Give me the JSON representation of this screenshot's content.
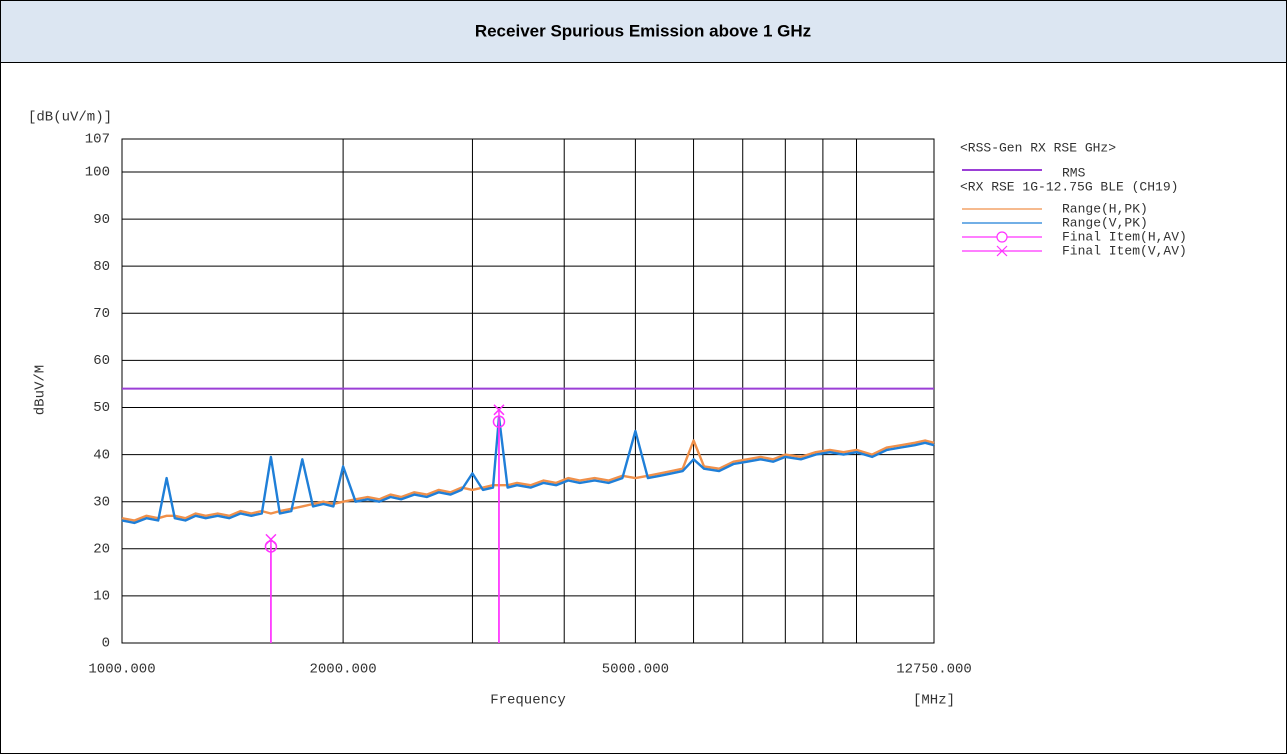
{
  "header": {
    "title": "Receiver Spurious Emission above 1 GHz"
  },
  "chart_data": {
    "type": "line",
    "y_unit": "[dB(uV/m)]",
    "ylabel": "dBuV/M",
    "xlabel": "Frequency",
    "x_unit": "[MHz]",
    "xscale": "log",
    "grid": true,
    "xlim": [
      1000,
      12750
    ],
    "ylim": [
      0,
      107
    ],
    "yticks": [
      0,
      10,
      20,
      30,
      40,
      50,
      60,
      70,
      80,
      90,
      100,
      107
    ],
    "xticks": [
      {
        "value": 1000,
        "label": "1000.000"
      },
      {
        "value": 2000,
        "label": "2000.000"
      },
      {
        "value": 5000,
        "label": "5000.000"
      },
      {
        "value": 12750,
        "label": "12750.000"
      }
    ],
    "xgrid": [
      3000,
      4000,
      6000,
      7000,
      8000,
      9000,
      10000
    ],
    "legend_groups": [
      "<RSS-Gen RX RSE GHz>",
      "<RX RSE 1G-12.75G BLE (CH19)"
    ],
    "limit": {
      "name": "RMS",
      "color": "#9b3fd6",
      "value": 54
    },
    "x": [
      1000,
      1040,
      1080,
      1120,
      1150,
      1180,
      1220,
      1260,
      1300,
      1350,
      1400,
      1450,
      1500,
      1550,
      1595,
      1640,
      1700,
      1760,
      1820,
      1880,
      1940,
      2000,
      2080,
      2160,
      2240,
      2320,
      2400,
      2500,
      2600,
      2700,
      2800,
      2900,
      3000,
      3100,
      3200,
      3260,
      3350,
      3450,
      3600,
      3750,
      3900,
      4050,
      4200,
      4400,
      4600,
      4800,
      5000,
      5200,
      5400,
      5600,
      5800,
      6000,
      6200,
      6500,
      6800,
      7100,
      7400,
      7700,
      8000,
      8400,
      8800,
      9200,
      9600,
      10000,
      10500,
      11000,
      11500,
      12000,
      12400,
      12750
    ],
    "series": [
      {
        "name": "Range(H,PK)",
        "color": "#f0904a",
        "values": [
          26.5,
          26,
          27,
          26.5,
          27,
          27,
          26.5,
          27.5,
          27,
          27.5,
          27,
          28,
          27.5,
          28,
          27.5,
          28,
          28.5,
          29,
          29.5,
          30,
          29.5,
          30,
          30.5,
          31,
          30.5,
          31.5,
          31,
          32,
          31.5,
          32.5,
          32,
          33,
          32.5,
          33,
          33.5,
          33.5,
          33.5,
          34,
          33.5,
          34.5,
          34,
          35,
          34.5,
          35,
          34.5,
          35.5,
          35,
          35.5,
          36,
          36.5,
          37,
          43,
          37.5,
          37,
          38.5,
          39,
          39.5,
          39,
          40,
          39.5,
          40.5,
          41,
          40.5,
          41,
          40,
          41.5,
          42,
          42.5,
          43,
          42.5
        ]
      },
      {
        "name": "Range(V,PK)",
        "color": "#1f7fd8",
        "values": [
          26,
          25.5,
          26.5,
          26,
          35,
          26.5,
          26,
          27,
          26.5,
          27,
          26.5,
          27.5,
          27,
          27.5,
          39.5,
          27.5,
          28,
          39,
          29,
          29.5,
          29,
          37.5,
          30,
          30.5,
          30,
          31,
          30.5,
          31.5,
          31,
          32,
          31.5,
          32.5,
          36,
          32.5,
          33,
          48,
          33,
          33.5,
          33,
          34,
          33.5,
          34.5,
          34,
          34.5,
          34,
          35,
          45,
          35,
          35.5,
          36,
          36.5,
          39,
          37,
          36.5,
          38,
          38.5,
          39,
          38.5,
          39.5,
          39,
          40,
          40.5,
          40,
          40.5,
          39.5,
          41,
          41.5,
          42,
          42.5,
          42
        ]
      }
    ],
    "final_items": [
      {
        "name": "Final Item(H,AV)",
        "color": "#ff33ff",
        "marker": "circle",
        "x": [
          1595,
          3260
        ],
        "values": [
          20.5,
          47
        ]
      },
      {
        "name": "Final Item(V,AV)",
        "color": "#ff33ff",
        "marker": "x",
        "x": [
          1595,
          3260
        ],
        "values": [
          22,
          49.5
        ]
      }
    ]
  }
}
